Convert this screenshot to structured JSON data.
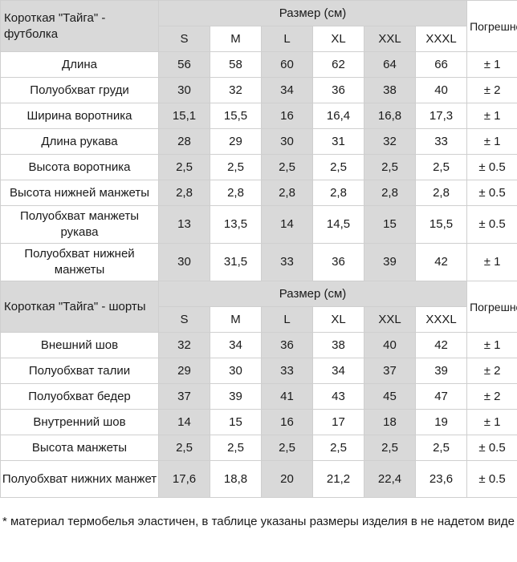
{
  "top_table": {
    "product": "Короткая \"Тайга\" - футболка",
    "size_header": "Размер (см)",
    "error_header": "Погрешность",
    "sizes": [
      "S",
      "M",
      "L",
      "XL",
      "XXL",
      "XXXL"
    ],
    "rows": [
      {
        "label": "Длина",
        "values": [
          "56",
          "58",
          "60",
          "62",
          "64",
          "66"
        ],
        "error": "± 1"
      },
      {
        "label": "Полуобхват груди",
        "values": [
          "30",
          "32",
          "34",
          "36",
          "38",
          "40"
        ],
        "error": "± 2"
      },
      {
        "label": "Ширина воротника",
        "values": [
          "15,1",
          "15,5",
          "16",
          "16,4",
          "16,8",
          "17,3"
        ],
        "error": "± 1"
      },
      {
        "label": "Длина рукава",
        "values": [
          "28",
          "29",
          "30",
          "31",
          "32",
          "33"
        ],
        "error": "± 1"
      },
      {
        "label": "Высота воротника",
        "values": [
          "2,5",
          "2,5",
          "2,5",
          "2,5",
          "2,5",
          "2,5"
        ],
        "error": "± 0.5"
      },
      {
        "label": "Высота нижней манжеты",
        "values": [
          "2,8",
          "2,8",
          "2,8",
          "2,8",
          "2,8",
          "2,8"
        ],
        "error": "± 0.5"
      },
      {
        "label": "Полуобхват манжеты рукава",
        "values": [
          "13",
          "13,5",
          "14",
          "14,5",
          "15",
          "15,5"
        ],
        "error": "± 0.5"
      },
      {
        "label": "Полуобхват нижней манжеты",
        "values": [
          "30",
          "31,5",
          "33",
          "36",
          "39",
          "42"
        ],
        "error": "± 1"
      }
    ]
  },
  "bottom_table": {
    "product": "Короткая \"Тайга\" - шорты",
    "size_header": "Размер (см)",
    "error_header": "Погрешность",
    "sizes": [
      "S",
      "M",
      "L",
      "XL",
      "XXL",
      "XXXL"
    ],
    "rows": [
      {
        "label": "Внешний шов",
        "values": [
          "32",
          "34",
          "36",
          "38",
          "40",
          "42"
        ],
        "error": "± 1"
      },
      {
        "label": "Полуобхват талии",
        "values": [
          "29",
          "30",
          "33",
          "34",
          "37",
          "39"
        ],
        "error": "± 2"
      },
      {
        "label": "Полуобхват бедер",
        "values": [
          "37",
          "39",
          "41",
          "43",
          "45",
          "47"
        ],
        "error": "± 2"
      },
      {
        "label": "Внутренний шов",
        "values": [
          "14",
          "15",
          "16",
          "17",
          "18",
          "19"
        ],
        "error": "± 1"
      },
      {
        "label": "Высота манжеты",
        "values": [
          "2,5",
          "2,5",
          "2,5",
          "2,5",
          "2,5",
          "2,5"
        ],
        "error": "± 0.5"
      },
      {
        "label": "Полуобхват нижних манжет",
        "values": [
          "17,6",
          "18,8",
          "20",
          "21,2",
          "22,4",
          "23,6"
        ],
        "error": "± 0.5"
      }
    ]
  },
  "footnote": "* материал термобелья эластичен, в таблице указаны размеры изделия в не надетом виде"
}
